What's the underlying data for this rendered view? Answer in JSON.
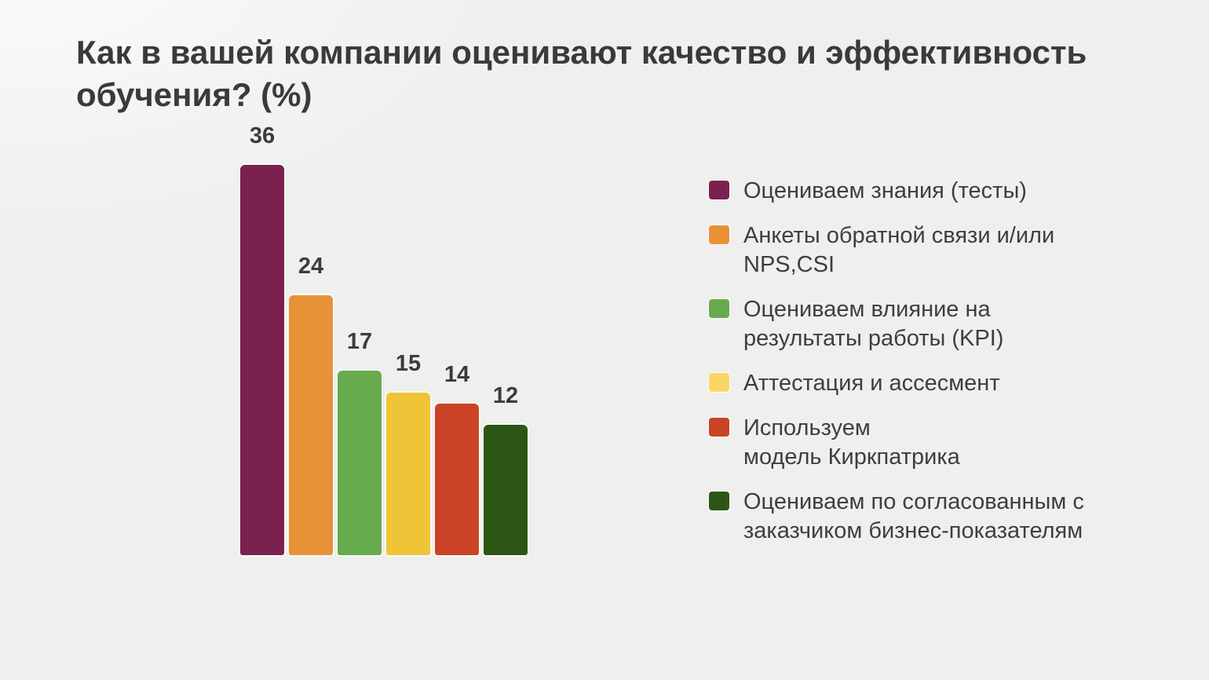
{
  "slide": {
    "title": "Как в вашей компании оценивают качество и эффективность обучения? (%)"
  },
  "chart_data": {
    "type": "bar",
    "title": "Как в вашей компании оценивают качество и эффективность обучения? (%)",
    "unit": "%",
    "categories": [
      "Оцениваем знания (тесты)",
      "Анкеты обратной связи и/или NPS,CSI",
      "Оцениваем влияние на результаты работы (KPI)",
      "Аттестация и ассесмент",
      "Используем модель Киркпатрика",
      "Оцениваем по согласованным с заказчиком бизнес-показателям"
    ],
    "values": [
      36,
      24,
      17,
      15,
      14,
      12
    ],
    "colors": [
      "#7B2150",
      "#E89238",
      "#67AB4F",
      "#EFC436",
      "#CB4327",
      "#2D5616"
    ],
    "data_labels": [
      36,
      24,
      17,
      15,
      14,
      12
    ],
    "legend_position": "right",
    "grid": false,
    "axes_visible": false,
    "ylim": [
      0,
      36
    ]
  },
  "legend": {
    "items": [
      {
        "lines": [
          "Оцениваем знания (тесты)"
        ],
        "color": "#7B2150",
        "swatch_color": "#7B2150"
      },
      {
        "lines": [
          "Анкеты обратной связи и/или",
          "NPS,CSI"
        ],
        "color": "#E89238",
        "swatch_color": "#E89238"
      },
      {
        "lines": [
          "Оцениваем влияние на",
          "результаты работы (KPI)"
        ],
        "color": "#67AB4F",
        "swatch_color": "#67AB4F"
      },
      {
        "lines": [
          "Аттестация и ассесмент"
        ],
        "color": "#EFC436",
        "swatch_color": "#FAD763"
      },
      {
        "lines": [
          "Используем",
          "модель Киркпатрика"
        ],
        "color": "#CB4327",
        "swatch_color": "#CB4327"
      },
      {
        "lines": [
          "Оцениваем по согласованным с",
          "заказчиком бизнес-показателям"
        ],
        "color": "#2D5616",
        "swatch_color": "#2D5616"
      }
    ]
  },
  "colors": {
    "background": "#EFEFEE",
    "background_highlight": "#FBFBFA",
    "title_text": "#3A3A3A",
    "value_label_text": "#3C3C3C",
    "legend_text": "#3E3E3E"
  }
}
